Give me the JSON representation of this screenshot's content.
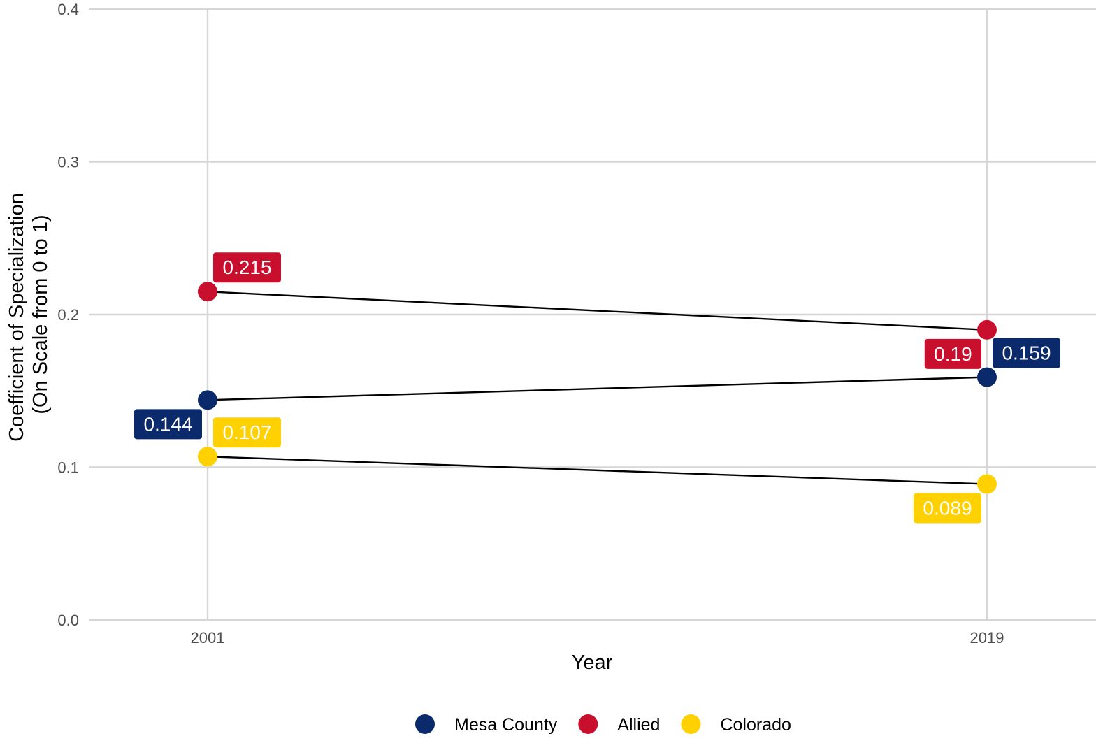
{
  "chart_data": {
    "type": "line",
    "x": [
      "2001",
      "2019"
    ],
    "xlabel": "Year",
    "ylabel": [
      "Coefficient of Specialization",
      "(On Scale from 0 to 1)"
    ],
    "ylim": [
      0,
      0.4
    ],
    "yticks": [
      "0.0",
      "0.1",
      "0.2",
      "0.3",
      "0.4"
    ],
    "grid": true,
    "legend_position": "bottom",
    "series": [
      {
        "name": "Mesa County",
        "color": "#0b2a6b",
        "values": [
          0.144,
          0.159
        ],
        "labels": [
          "0.144",
          "0.159"
        ]
      },
      {
        "name": "Allied",
        "color": "#c8102e",
        "values": [
          0.215,
          0.19
        ],
        "labels": [
          "0.215",
          "0.19"
        ]
      },
      {
        "name": "Colorado",
        "color": "#ffd100",
        "values": [
          0.107,
          0.089
        ],
        "labels": [
          "0.107",
          "0.089"
        ]
      }
    ]
  }
}
